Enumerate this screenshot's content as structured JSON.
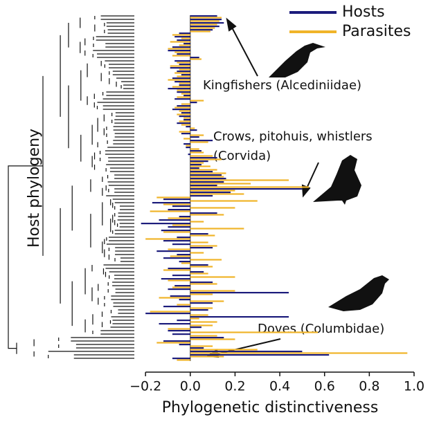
{
  "chart_data": {
    "type": "bar",
    "title_y": "Host phylogeny",
    "xlabel": "Phylogenetic distinctiveness",
    "annotations": [
      "Kingfishers (Alcediniidae)",
      "Crows, pitohuis, whistlers",
      "(Corvida)",
      "Doves (Columbidae)"
    ],
    "xlim": [
      -0.25,
      1.0
    ],
    "xticks": [
      {
        "value": -0.2,
        "label": "−0.2"
      },
      {
        "value": 0,
        "label": "0.0"
      },
      0.2,
      0.4,
      0.6,
      0.8,
      {
        "value": 1.0,
        "label": "1.0"
      }
    ],
    "legend": "top-right",
    "series": [
      {
        "name": "Hosts",
        "color": "#1c1c7c",
        "values": [
          0.12,
          0.14,
          0.15,
          0.13,
          0.1,
          -0.05,
          -0.07,
          -0.06,
          -0.03,
          -0.08,
          -0.1,
          -0.06,
          0.04,
          -0.07,
          -0.05,
          -0.09,
          -0.06,
          -0.04,
          -0.08,
          -0.07,
          -0.05,
          -0.1,
          -0.06,
          -0.03,
          -0.07,
          0.03,
          -0.06,
          -0.08,
          -0.04,
          -0.05,
          -0.03,
          -0.06,
          -0.02,
          0.03,
          -0.04,
          0.04,
          0.1,
          -0.03,
          -0.02,
          0.05,
          -0.01,
          0.12,
          0.08,
          0.05,
          0.04,
          0.1,
          0.14,
          0.16,
          0.15,
          0.12,
          0.5,
          0.18,
          0.1,
          -0.12,
          -0.17,
          -0.08,
          -0.1,
          0.12,
          -0.05,
          -0.14,
          -0.22,
          -0.1,
          -0.13,
          0.08,
          -0.06,
          -0.12,
          -0.08,
          0.1,
          -0.15,
          -0.06,
          -0.12,
          -0.05,
          0.08,
          -0.1,
          0.06,
          -0.08,
          -0.13,
          0.1,
          -0.07,
          -0.1,
          0.44,
          -0.09,
          -0.05,
          0.1,
          -0.12,
          0.08,
          -0.2,
          0.44,
          -0.06,
          -0.14,
          0.05,
          -0.1,
          -0.08,
          0.15,
          -0.12,
          -0.05,
          0.06,
          0.5,
          0.62,
          -0.08
        ]
      },
      {
        "name": "Parasites",
        "color": "#f0b429",
        "values": [
          0.14,
          0.13,
          0.12,
          0.11,
          0.09,
          -0.08,
          -0.04,
          -0.09,
          -0.05,
          -0.1,
          -0.07,
          -0.08,
          0.05,
          -0.06,
          -0.09,
          -0.05,
          -0.07,
          -0.06,
          -0.1,
          -0.05,
          -0.08,
          -0.06,
          -0.04,
          -0.06,
          0.06,
          -0.04,
          -0.07,
          -0.05,
          -0.06,
          -0.03,
          -0.05,
          -0.04,
          0.02,
          -0.05,
          0.06,
          -0.03,
          0.08,
          -0.02,
          0.04,
          0.06,
          0.1,
          0.14,
          0.06,
          0.09,
          0.12,
          0.16,
          0.15,
          0.44,
          0.27,
          0.53,
          0.2,
          0.24,
          -0.15,
          0.3,
          -0.12,
          0.2,
          -0.18,
          0.15,
          -0.1,
          0.06,
          -0.08,
          0.24,
          -0.12,
          0.11,
          -0.2,
          0.08,
          0.12,
          -0.1,
          0.06,
          -0.09,
          0.14,
          -0.04,
          0.1,
          -0.12,
          0.08,
          0.2,
          -0.1,
          0.12,
          -0.08,
          0.2,
          0.1,
          -0.14,
          0.15,
          -0.06,
          0.1,
          -0.18,
          0.08,
          0.04,
          0.12,
          0.1,
          -0.1,
          0.57,
          0.12,
          0.2,
          -0.15,
          0.1,
          0.3,
          0.97,
          0.15,
          -0.06
        ]
      }
    ]
  }
}
